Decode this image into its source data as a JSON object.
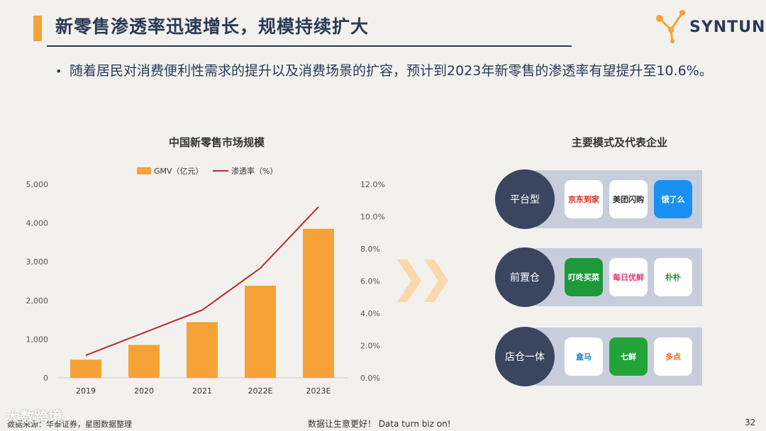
{
  "header": {
    "title": "新零售渗透率迅速增长，规模持续扩大",
    "logo_text": "SYNTUN"
  },
  "bullet": {
    "text": "随着居民对消费便利性需求的提升以及消费场景的扩容，预计到2023年新零售的渗透率有望提升至10.6%。"
  },
  "chart_data": {
    "type": "bar",
    "title": "中国新零售市场规模",
    "categories": [
      "2019",
      "2020",
      "2021",
      "2022E",
      "2023E"
    ],
    "series": [
      {
        "name": "GMV（亿元）",
        "type": "bar",
        "axis": "left",
        "color": "#f7a236",
        "values": [
          470,
          850,
          1440,
          2380,
          3850
        ]
      },
      {
        "name": "渗透率（%）",
        "type": "line",
        "axis": "right",
        "color": "#c0282d",
        "values": [
          1.4,
          2.8,
          4.2,
          6.8,
          10.6
        ]
      }
    ],
    "y_left": {
      "range": [
        0,
        5000
      ],
      "ticks": [
        "0",
        "1,000",
        "2,000",
        "3,000",
        "4,000",
        "5,000"
      ]
    },
    "y_right": {
      "range": [
        0,
        12
      ],
      "ticks": [
        "0.0%",
        "2.0%",
        "4.0%",
        "6.0%",
        "8.0%",
        "10.0%",
        "12.0%"
      ]
    },
    "legend_position": "top"
  },
  "right_panel": {
    "title": "主要模式及代表企业",
    "rows": [
      {
        "label": "平台型",
        "apps": [
          {
            "name": "京东到家",
            "icon": "jd-daojia-icon",
            "bg": "#ffffff",
            "color": "#e1251b"
          },
          {
            "name": "美团闪购",
            "icon": "meituan-shangou-icon",
            "bg": "#ffffff",
            "color": "#333333"
          },
          {
            "name": "饿了么",
            "icon": "eleme-icon",
            "bg": "#1a90f2",
            "color": "#ffffff"
          }
        ]
      },
      {
        "label": "前置仓",
        "apps": [
          {
            "name": "叮咚买菜",
            "icon": "dingdong-icon",
            "bg": "#1e9a3b",
            "color": "#ffffff"
          },
          {
            "name": "每日优鲜",
            "icon": "missfresh-icon",
            "bg": "#ffffff",
            "color": "#e6397a"
          },
          {
            "name": "朴朴",
            "icon": "pupu-icon",
            "bg": "#ffffff",
            "color": "#2e8b3a"
          }
        ]
      },
      {
        "label": "店仓一体",
        "apps": [
          {
            "name": "盒马",
            "icon": "hema-icon",
            "bg": "#ffffff",
            "color": "#1a7fd6"
          },
          {
            "name": "七鲜",
            "icon": "7fresh-icon",
            "bg": "#24a33a",
            "color": "#ffffff"
          },
          {
            "name": "多点",
            "icon": "dmall-icon",
            "bg": "#ffffff",
            "color": "#f06a1c"
          }
        ]
      }
    ]
  },
  "footer": {
    "source": "数据来源：华泰证券，星图数据整理",
    "slogan": "数据让生意更好！ Data turn biz on!",
    "page": "32",
    "watermark": "大数跨境"
  }
}
